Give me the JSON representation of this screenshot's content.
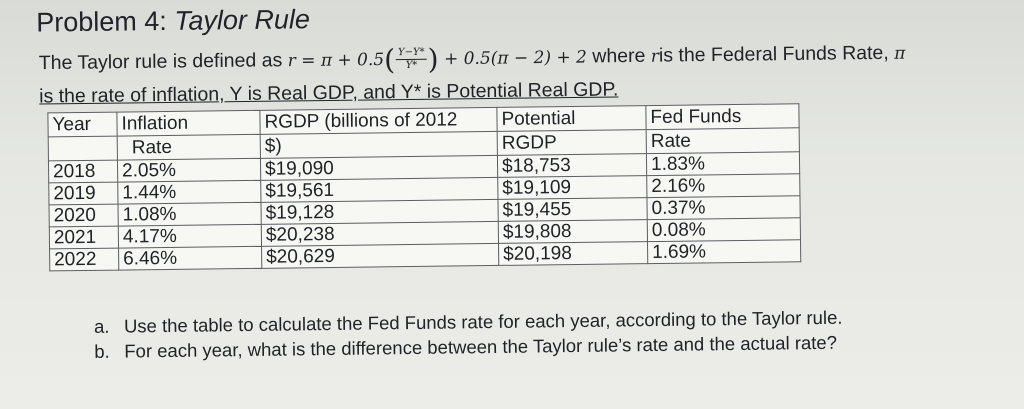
{
  "title": {
    "prefix": "Problem 4: ",
    "name": "Taylor Rule"
  },
  "intro": {
    "pre": "The Taylor rule is defined as ",
    "eq_start": "r = π + 0.5",
    "frac_num": "Y−Y*",
    "frac_den": "Y*",
    "eq_end": " + 0.5(π − 2) + 2",
    "mid": " where ",
    "r_sym": "r",
    "mid2": "is the Federal Funds Rate, ",
    "pi_sym": "π",
    "line2": "is the rate of inflation, Y is Real GDP, and Y* is Potential Real GDP."
  },
  "table": {
    "headers": [
      [
        "Year"
      ],
      [
        "Inflation",
        "Rate"
      ],
      [
        "RGDP (billions of 2012",
        "$)"
      ],
      [
        "Potential",
        "RGDP"
      ],
      [
        "Fed Funds",
        "Rate"
      ]
    ],
    "rows": [
      [
        "2018",
        "2.05%",
        "$19,090",
        "$18,753",
        "1.83%"
      ],
      [
        "2019",
        "1.44%",
        "$19,561",
        "$19,109",
        "2.16%"
      ],
      [
        "2020",
        "1.08%",
        "$19,128",
        "$19,455",
        "0.37%"
      ],
      [
        "2021",
        "4.17%",
        "$20,238",
        "$19,808",
        "0.08%"
      ],
      [
        "2022",
        "6.46%",
        "$20,629",
        "$20,198",
        "1.69%"
      ]
    ]
  },
  "questions": [
    {
      "label": "a.",
      "text": "Use the table to calculate the Fed Funds rate for each year, according to the Taylor rule."
    },
    {
      "label": "b.",
      "text": "For each year, what is the difference between the Taylor rule’s rate and the actual rate?"
    }
  ]
}
